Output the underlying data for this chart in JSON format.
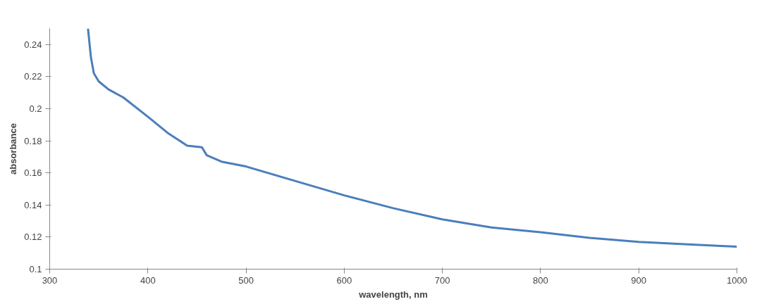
{
  "chart_data": {
    "type": "line",
    "xlabel": "wavelength, nm",
    "ylabel": "absorbance",
    "x": [
      339,
      342,
      345,
      350,
      360,
      375,
      400,
      420,
      440,
      455,
      460,
      475,
      500,
      550,
      600,
      650,
      700,
      750,
      800,
      850,
      900,
      950,
      1000
    ],
    "series": [
      {
        "color": "#4a7ebb",
        "values": [
          0.25,
          0.232,
          0.222,
          0.217,
          0.212,
          0.207,
          0.195,
          0.185,
          0.177,
          0.176,
          0.171,
          0.167,
          0.164,
          0.155,
          0.146,
          0.138,
          0.131,
          0.126,
          0.123,
          0.1195,
          0.117,
          0.1155,
          0.114
        ]
      }
    ],
    "xlim": [
      300,
      1000
    ],
    "xticks": [
      300,
      400,
      500,
      600,
      700,
      800,
      900,
      1000
    ],
    "ylim": [
      0.1,
      0.25
    ],
    "yticks": [
      {
        "value": 0.1,
        "label": "0.1"
      },
      {
        "value": 0.12,
        "label": "0.12"
      },
      {
        "value": 0.14,
        "label": "0.14"
      },
      {
        "value": 0.16,
        "label": "0.16"
      },
      {
        "value": 0.18,
        "label": "0.18"
      },
      {
        "value": 0.2,
        "label": "0.2"
      },
      {
        "value": 0.22,
        "label": "0.22"
      },
      {
        "value": 0.24,
        "label": "0.24"
      }
    ],
    "grid": false,
    "marker": "none",
    "line_style": "solid"
  }
}
